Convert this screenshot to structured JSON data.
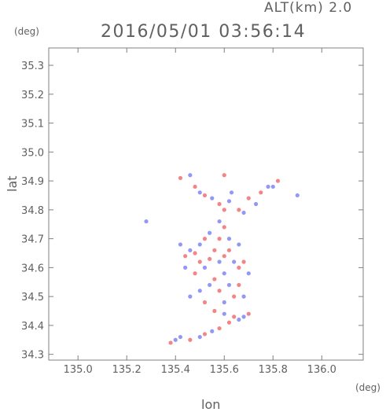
{
  "header": {
    "alt_text": "ALT(km) 2.0",
    "datetime": "2016/05/01 03:56:14"
  },
  "chart_data": {
    "type": "scatter",
    "title": "2016/05/01 03:56:14",
    "xlabel": "lon",
    "ylabel": "lat",
    "x_unit": "(deg)",
    "y_unit": "(deg)",
    "xlim": [
      134.88,
      136.17
    ],
    "ylim": [
      34.28,
      35.36
    ],
    "xticks": [
      "135.0",
      "135.2",
      "135.4",
      "135.6",
      "135.8",
      "136.0"
    ],
    "yticks": [
      "34.3",
      "34.4",
      "34.5",
      "34.6",
      "34.7",
      "34.8",
      "34.9",
      "35.0",
      "35.1",
      "35.2",
      "35.3"
    ],
    "grid": false,
    "colors": {
      "positive": "#f07070",
      "negative": "#7f86f2",
      "axis": "#808080"
    },
    "series": [
      {
        "values": [
          [
            135.42,
            34.91,
            1
          ],
          [
            135.46,
            34.92,
            -1
          ],
          [
            135.48,
            34.88,
            1
          ],
          [
            135.5,
            34.86,
            -1
          ],
          [
            135.52,
            34.85,
            1
          ],
          [
            135.55,
            34.84,
            -1
          ],
          [
            135.58,
            34.82,
            1
          ],
          [
            135.6,
            34.8,
            1
          ],
          [
            135.62,
            34.83,
            -1
          ],
          [
            135.6,
            34.92,
            1
          ],
          [
            135.63,
            34.86,
            -1
          ],
          [
            135.66,
            34.8,
            1
          ],
          [
            135.68,
            34.79,
            -1
          ],
          [
            135.7,
            34.84,
            1
          ],
          [
            135.73,
            34.82,
            -1
          ],
          [
            135.75,
            34.86,
            1
          ],
          [
            135.78,
            34.88,
            -1
          ],
          [
            135.82,
            34.9,
            1
          ],
          [
            135.8,
            34.88,
            -1
          ],
          [
            135.9,
            34.85,
            -1
          ],
          [
            135.58,
            34.76,
            -1
          ],
          [
            135.6,
            34.74,
            1
          ],
          [
            135.28,
            34.76,
            -1
          ],
          [
            135.42,
            34.68,
            -1
          ],
          [
            135.44,
            34.64,
            1
          ],
          [
            135.46,
            34.66,
            -1
          ],
          [
            135.48,
            34.65,
            1
          ],
          [
            135.5,
            34.68,
            -1
          ],
          [
            135.5,
            34.62,
            1
          ],
          [
            135.52,
            34.6,
            -1
          ],
          [
            135.54,
            34.63,
            1
          ],
          [
            135.56,
            34.66,
            1
          ],
          [
            135.58,
            34.62,
            -1
          ],
          [
            135.6,
            34.64,
            1
          ],
          [
            135.62,
            34.66,
            1
          ],
          [
            135.64,
            34.62,
            -1
          ],
          [
            135.66,
            34.6,
            1
          ],
          [
            135.6,
            34.58,
            -1
          ],
          [
            135.56,
            34.56,
            1
          ],
          [
            135.54,
            34.54,
            -1
          ],
          [
            135.58,
            34.52,
            1
          ],
          [
            135.62,
            34.54,
            -1
          ],
          [
            135.64,
            34.5,
            1
          ],
          [
            135.6,
            34.48,
            -1
          ],
          [
            135.52,
            34.48,
            1
          ],
          [
            135.5,
            34.52,
            -1
          ],
          [
            135.46,
            34.5,
            -1
          ],
          [
            135.48,
            34.58,
            1
          ],
          [
            135.44,
            34.6,
            -1
          ],
          [
            135.52,
            34.7,
            1
          ],
          [
            135.54,
            34.72,
            -1
          ],
          [
            135.58,
            34.7,
            1
          ],
          [
            135.62,
            34.7,
            -1
          ],
          [
            135.66,
            34.68,
            -1
          ],
          [
            135.68,
            34.62,
            1
          ],
          [
            135.7,
            34.58,
            -1
          ],
          [
            135.66,
            34.54,
            1
          ],
          [
            135.68,
            34.5,
            -1
          ],
          [
            135.56,
            34.45,
            1
          ],
          [
            135.6,
            34.44,
            -1
          ],
          [
            135.64,
            34.43,
            1
          ],
          [
            135.66,
            34.42,
            -1
          ],
          [
            135.62,
            34.41,
            1
          ],
          [
            135.58,
            34.39,
            1
          ],
          [
            135.55,
            34.38,
            -1
          ],
          [
            135.52,
            34.37,
            1
          ],
          [
            135.5,
            34.36,
            -1
          ],
          [
            135.46,
            34.35,
            1
          ],
          [
            135.42,
            34.36,
            -1
          ],
          [
            135.4,
            34.35,
            -1
          ],
          [
            135.38,
            34.34,
            1
          ],
          [
            135.68,
            34.43,
            -1
          ],
          [
            135.7,
            34.44,
            1
          ]
        ]
      }
    ]
  }
}
